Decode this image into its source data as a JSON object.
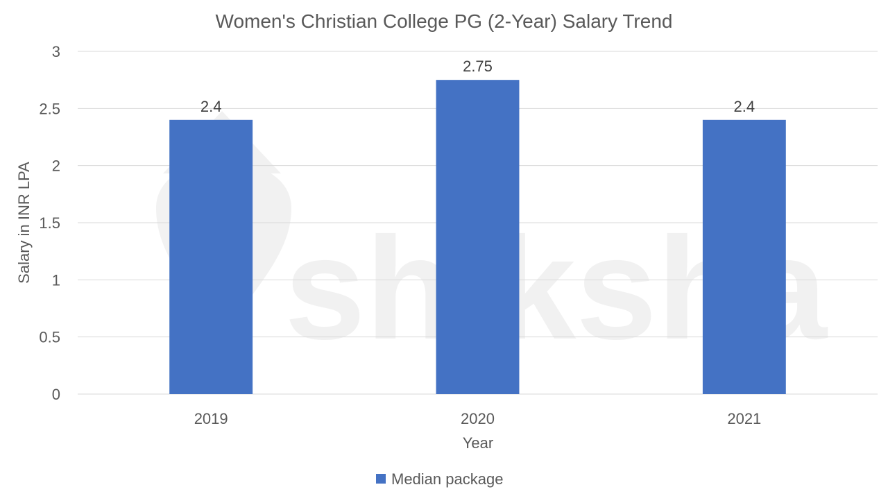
{
  "chart_data": {
    "type": "bar",
    "title": "Women's Christian College PG (2-Year) Salary Trend",
    "xlabel": "Year",
    "ylabel": "Salary in INR LPA",
    "categories": [
      "2019",
      "2020",
      "2021"
    ],
    "series": [
      {
        "name": "Median package",
        "values": [
          2.4,
          2.75,
          2.4
        ],
        "color": "#4472C4"
      }
    ],
    "data_labels": [
      "2.4",
      "2.75",
      "2.4"
    ],
    "ylim": [
      0,
      3
    ],
    "yticks": [
      0,
      0.5,
      1,
      1.5,
      2,
      2.5,
      3
    ],
    "ytick_labels": [
      "0",
      "0.5",
      "1",
      "1.5",
      "2",
      "2.5",
      "3"
    ],
    "grid": true,
    "legend_position": "bottom"
  },
  "watermark": {
    "text": "shiksha",
    "icon": "shiksha-logo-icon"
  }
}
